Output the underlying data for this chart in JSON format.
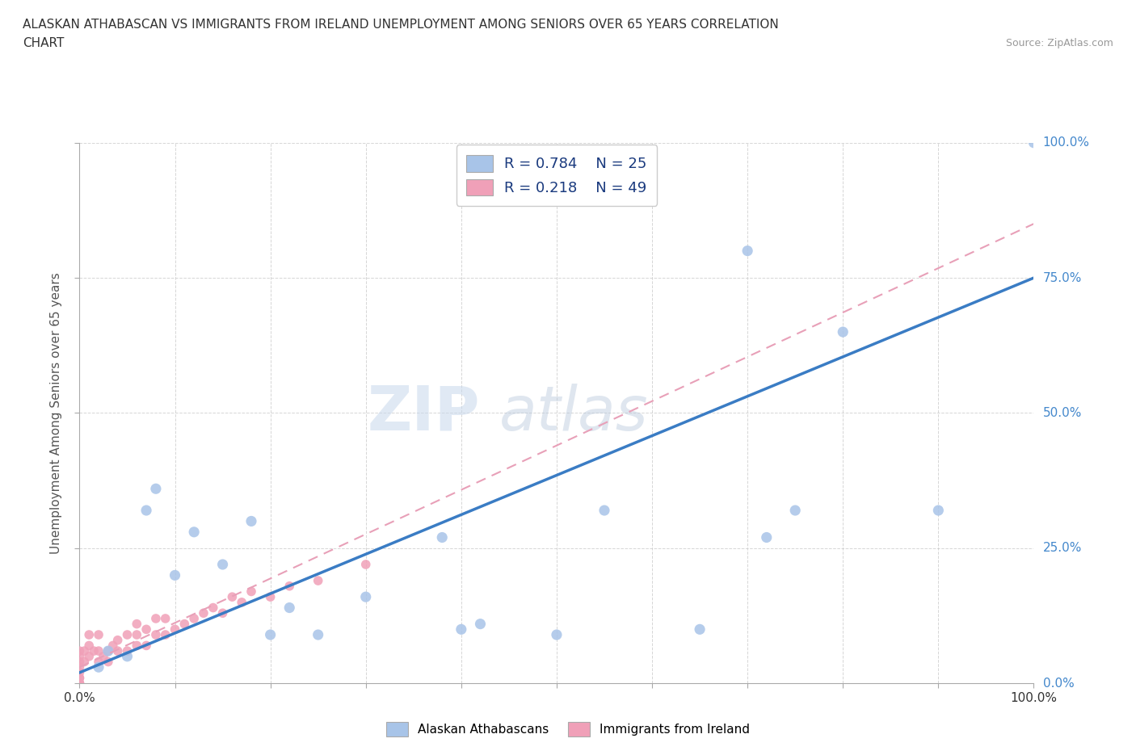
{
  "title_line1": "ALASKAN ATHABASCAN VS IMMIGRANTS FROM IRELAND UNEMPLOYMENT AMONG SENIORS OVER 65 YEARS CORRELATION",
  "title_line2": "CHART",
  "source": "Source: ZipAtlas.com",
  "ylabel": "Unemployment Among Seniors over 65 years",
  "xlim": [
    0,
    1.0
  ],
  "ylim": [
    0,
    1.0
  ],
  "ytick_positions": [
    0.0,
    0.25,
    0.5,
    0.75,
    1.0
  ],
  "blue_R": 0.784,
  "blue_N": 25,
  "pink_R": 0.218,
  "pink_N": 49,
  "blue_color": "#a8c4e8",
  "pink_color": "#f0a0b8",
  "blue_line_color": "#3a7cc4",
  "pink_line_color": "#e8a0b8",
  "watermark_zip": "ZIP",
  "watermark_atlas": "atlas",
  "blue_scatter_x": [
    0.02,
    0.03,
    0.05,
    0.07,
    0.08,
    0.1,
    0.12,
    0.15,
    0.18,
    0.2,
    0.22,
    0.25,
    0.3,
    0.38,
    0.4,
    0.42,
    0.5,
    0.55,
    0.65,
    0.7,
    0.72,
    0.75,
    0.8,
    0.9,
    1.0
  ],
  "blue_scatter_y": [
    0.03,
    0.06,
    0.05,
    0.32,
    0.36,
    0.2,
    0.28,
    0.22,
    0.3,
    0.09,
    0.14,
    0.09,
    0.16,
    0.27,
    0.1,
    0.11,
    0.09,
    0.32,
    0.1,
    0.8,
    0.27,
    0.32,
    0.65,
    0.32,
    1.0
  ],
  "pink_scatter_x": [
    0.0,
    0.0,
    0.0,
    0.0,
    0.0,
    0.0,
    0.0,
    0.0,
    0.0,
    0.0,
    0.005,
    0.005,
    0.01,
    0.01,
    0.01,
    0.015,
    0.02,
    0.02,
    0.02,
    0.025,
    0.03,
    0.03,
    0.035,
    0.04,
    0.04,
    0.05,
    0.05,
    0.06,
    0.06,
    0.06,
    0.07,
    0.07,
    0.08,
    0.08,
    0.09,
    0.09,
    0.1,
    0.11,
    0.12,
    0.13,
    0.14,
    0.15,
    0.16,
    0.17,
    0.18,
    0.2,
    0.22,
    0.25,
    0.3
  ],
  "pink_scatter_y": [
    0.0,
    0.0,
    0.0,
    0.01,
    0.01,
    0.02,
    0.03,
    0.04,
    0.05,
    0.06,
    0.04,
    0.06,
    0.05,
    0.07,
    0.09,
    0.06,
    0.04,
    0.06,
    0.09,
    0.05,
    0.04,
    0.06,
    0.07,
    0.06,
    0.08,
    0.06,
    0.09,
    0.07,
    0.09,
    0.11,
    0.07,
    0.1,
    0.09,
    0.12,
    0.09,
    0.12,
    0.1,
    0.11,
    0.12,
    0.13,
    0.14,
    0.13,
    0.16,
    0.15,
    0.17,
    0.16,
    0.18,
    0.19,
    0.22
  ],
  "blue_line_x0": 0.0,
  "blue_line_y0": 0.02,
  "blue_line_x1": 1.0,
  "blue_line_y1": 0.75,
  "pink_line_x0": 0.0,
  "pink_line_y0": 0.03,
  "pink_line_x1": 1.0,
  "pink_line_y1": 0.85
}
